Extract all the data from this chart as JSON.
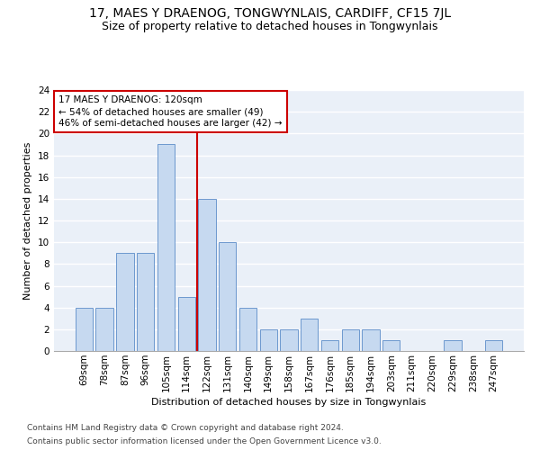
{
  "title": "17, MAES Y DRAENOG, TONGWYNLAIS, CARDIFF, CF15 7JL",
  "subtitle": "Size of property relative to detached houses in Tongwynlais",
  "xlabel": "Distribution of detached houses by size in Tongwynlais",
  "ylabel": "Number of detached properties",
  "categories": [
    "69sqm",
    "78sqm",
    "87sqm",
    "96sqm",
    "105sqm",
    "114sqm",
    "122sqm",
    "131sqm",
    "140sqm",
    "149sqm",
    "158sqm",
    "167sqm",
    "176sqm",
    "185sqm",
    "194sqm",
    "203sqm",
    "211sqm",
    "220sqm",
    "229sqm",
    "238sqm",
    "247sqm"
  ],
  "values": [
    4,
    4,
    9,
    9,
    19,
    5,
    14,
    10,
    4,
    2,
    2,
    3,
    1,
    2,
    2,
    1,
    0,
    0,
    1,
    0,
    1
  ],
  "bar_color": "#c6d9f0",
  "bar_edge_color": "#5b8cc8",
  "vline_color": "#cc0000",
  "annotation_box_text": "17 MAES Y DRAENOG: 120sqm\n← 54% of detached houses are smaller (49)\n46% of semi-detached houses are larger (42) →",
  "annotation_box_color": "#cc0000",
  "ylim": [
    0,
    24
  ],
  "yticks": [
    0,
    2,
    4,
    6,
    8,
    10,
    12,
    14,
    16,
    18,
    20,
    22,
    24
  ],
  "footer1": "Contains HM Land Registry data © Crown copyright and database right 2024.",
  "footer2": "Contains public sector information licensed under the Open Government Licence v3.0.",
  "bg_color": "#eaf0f8",
  "grid_color": "#ffffff",
  "title_fontsize": 10,
  "subtitle_fontsize": 9,
  "axis_label_fontsize": 8,
  "tick_fontsize": 7.5,
  "annotation_fontsize": 7.5,
  "footer_fontsize": 6.5
}
